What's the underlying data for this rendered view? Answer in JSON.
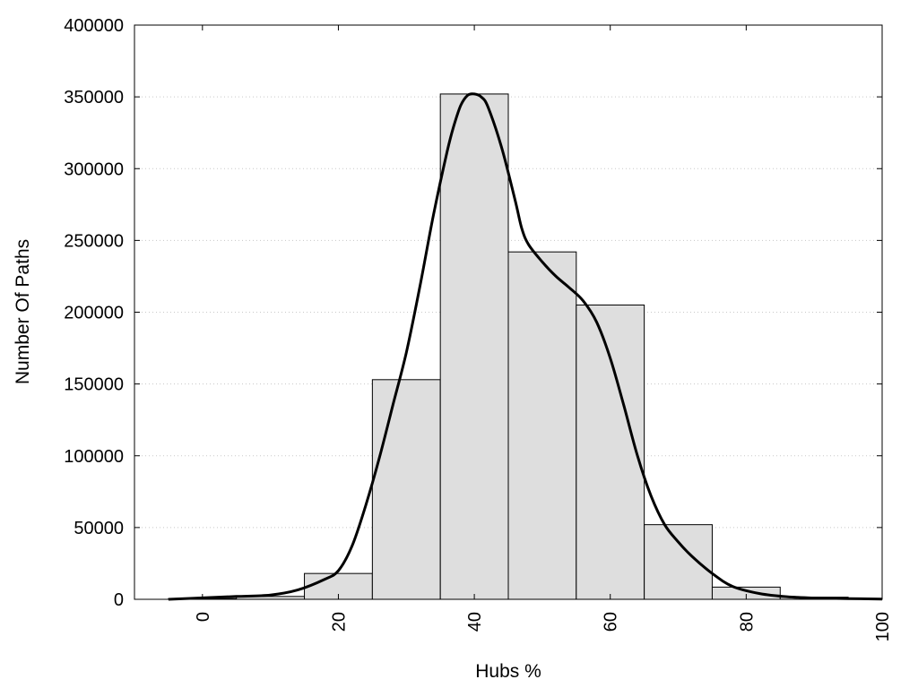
{
  "chart_data": {
    "type": "bar",
    "xlabel": "Hubs %",
    "ylabel": "Number Of Paths",
    "xlim": [
      -10,
      100
    ],
    "ylim": [
      0,
      400000
    ],
    "x_ticks": [
      0,
      20,
      40,
      60,
      80,
      100
    ],
    "y_ticks": [
      0,
      50000,
      100000,
      150000,
      200000,
      250000,
      300000,
      350000,
      400000
    ],
    "grid": "horizontal-dotted",
    "bars": [
      {
        "x0": -5,
        "x1": 5,
        "value": 500
      },
      {
        "x0": 5,
        "x1": 15,
        "value": 2000
      },
      {
        "x0": 15,
        "x1": 25,
        "value": 18000
      },
      {
        "x0": 25,
        "x1": 35,
        "value": 153000
      },
      {
        "x0": 35,
        "x1": 45,
        "value": 352000
      },
      {
        "x0": 45,
        "x1": 55,
        "value": 242000
      },
      {
        "x0": 55,
        "x1": 65,
        "value": 205000
      },
      {
        "x0": 65,
        "x1": 75,
        "value": 52000
      },
      {
        "x0": 75,
        "x1": 85,
        "value": 8500
      },
      {
        "x0": 85,
        "x1": 95,
        "value": 1500
      }
    ],
    "density_curve": {
      "x": [
        -5,
        0,
        5,
        10,
        14,
        18,
        20,
        22,
        24,
        26,
        28,
        30,
        32,
        34,
        36,
        37,
        38,
        39,
        40,
        41,
        42,
        44,
        46,
        47,
        48,
        50,
        52,
        54,
        56,
        58,
        60,
        62,
        64,
        66,
        68,
        70,
        72,
        75,
        78,
        82,
        86,
        90,
        95,
        100
      ],
      "y": [
        0,
        1000,
        2000,
        3000,
        6500,
        14000,
        20000,
        37000,
        65000,
        98000,
        135000,
        172000,
        218000,
        268000,
        312000,
        330000,
        344000,
        351000,
        352000,
        350000,
        343000,
        315000,
        278000,
        258000,
        247000,
        235000,
        225000,
        217000,
        208000,
        193000,
        168000,
        135000,
        100000,
        72000,
        52000,
        40000,
        30000,
        18000,
        9000,
        4000,
        1800,
        900,
        500,
        200
      ]
    }
  }
}
